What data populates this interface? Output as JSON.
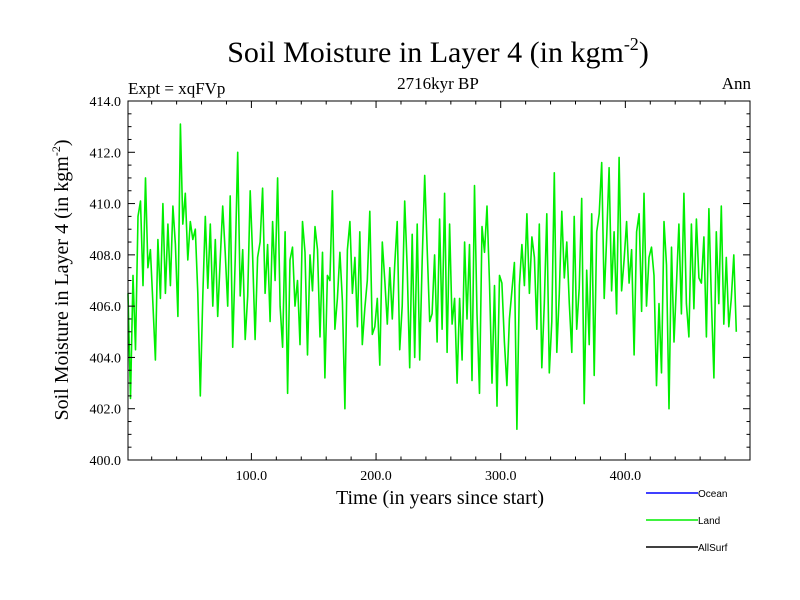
{
  "chart_data": {
    "type": "line",
    "title": "Soil Moisture in Layer 4 (in kgm",
    "title_sup": "-2",
    "title_close": ")",
    "subtitle_left": "Expt = xqFVp",
    "subtitle_center": "2716kyr BP",
    "subtitle_right": "Ann",
    "xlabel": "Time (in years since start)",
    "ylabel": "Soil Moisture in Layer 4 (in kgm",
    "ylabel_sup": "-2",
    "ylabel_close": ")",
    "xlim": [
      1,
      500
    ],
    "ylim": [
      400,
      414
    ],
    "xticks": [
      100,
      200,
      300,
      400
    ],
    "xtick_labels": [
      "100.0",
      "200.0",
      "300.0",
      "400.0"
    ],
    "yticks": [
      400,
      402,
      404,
      406,
      408,
      410,
      412,
      414
    ],
    "ytick_labels": [
      "400.0",
      "402.0",
      "404.0",
      "406.0",
      "408.0",
      "410.0",
      "412.0",
      "414.0"
    ],
    "legend_position": "bottom-right",
    "legend": [
      {
        "name": "Ocean",
        "color": "#0000ff"
      },
      {
        "name": "Land",
        "color": "#00ee00"
      },
      {
        "name": "AllSurf",
        "color": "#000000"
      }
    ],
    "series": [
      {
        "name": "Land",
        "color": "#00ee00",
        "x_start": 1,
        "x_step": 2,
        "values": [
          406.5,
          402.4,
          407.2,
          404.3,
          409.5,
          410.1,
          406.8,
          411.0,
          407.5,
          408.2,
          406.1,
          403.9,
          408.6,
          406.3,
          410.0,
          406.5,
          409.2,
          406.8,
          409.9,
          408.4,
          405.6,
          413.1,
          409.2,
          410.4,
          407.8,
          409.3,
          408.6,
          409.0,
          406.5,
          402.5,
          406.4,
          409.5,
          406.7,
          409.2,
          406.0,
          408.6,
          405.6,
          407.8,
          409.9,
          408.1,
          406.0,
          410.3,
          404.4,
          407.8,
          412.0,
          406.4,
          408.2,
          404.7,
          406.4,
          410.5,
          408.0,
          404.7,
          407.9,
          408.5,
          410.6,
          406.5,
          408.4,
          405.4,
          409.3,
          407.0,
          411.0,
          406.0,
          404.4,
          408.9,
          402.6,
          407.8,
          408.3,
          406.0,
          407.0,
          404.5,
          409.3,
          408.1,
          404.1,
          408.0,
          406.6,
          409.1,
          408.2,
          404.8,
          408.1,
          403.2,
          407.2,
          407.0,
          410.5,
          405.1,
          406.3,
          408.1,
          406.2,
          402.0,
          408.2,
          409.3,
          406.5,
          407.9,
          405.2,
          408.9,
          404.5,
          405.9,
          407.0,
          409.7,
          404.9,
          405.2,
          406.3,
          403.7,
          408.5,
          407.0,
          405.3,
          407.5,
          405.5,
          407.6,
          409.3,
          404.3,
          406.0,
          410.1,
          407.5,
          403.6,
          408.8,
          404.0,
          409.2,
          403.9,
          407.8,
          411.1,
          408.2,
          405.4,
          405.7,
          408.0,
          404.6,
          409.4,
          405.1,
          410.4,
          404.2,
          409.2,
          405.3,
          406.3,
          403.0,
          406.3,
          403.9,
          408.5,
          405.5,
          408.4,
          403.1,
          410.7,
          405.7,
          402.6,
          409.1,
          408.1,
          409.9,
          406.9,
          403.0,
          406.8,
          402.1,
          407.2,
          406.9,
          404.6,
          402.9,
          405.5,
          406.6,
          407.7,
          401.2,
          406.8,
          408.4,
          406.8,
          409.6,
          406.5,
          408.7,
          407.9,
          405.1,
          409.2,
          403.6,
          406.1,
          409.6,
          403.4,
          405.4,
          411.2,
          404.2,
          406.5,
          409.7,
          407.1,
          408.5,
          406.1,
          404.2,
          409.5,
          405.1,
          406.7,
          410.2,
          402.2,
          407.4,
          404.5,
          409.6,
          403.3,
          408.9,
          409.6,
          411.6,
          406.3,
          408.7,
          411.4,
          406.6,
          408.9,
          405.7,
          411.8,
          406.6,
          407.8,
          409.3,
          406.9,
          408.2,
          404.1,
          408.9,
          409.6,
          405.8,
          410.4,
          406.0,
          407.9,
          408.3,
          407.2,
          402.9,
          406.1,
          403.4,
          409.3,
          407.6,
          402.0,
          408.3,
          404.6,
          406.9,
          409.2,
          405.7,
          410.4,
          406.1,
          404.8,
          409.2,
          405.9,
          409.4,
          407.1,
          406.9,
          408.7,
          404.8,
          409.8,
          406.2,
          403.2,
          408.9,
          406.1,
          409.9,
          405.3,
          407.9,
          405.2,
          406.3,
          408.0,
          405.0
        ]
      }
    ]
  }
}
